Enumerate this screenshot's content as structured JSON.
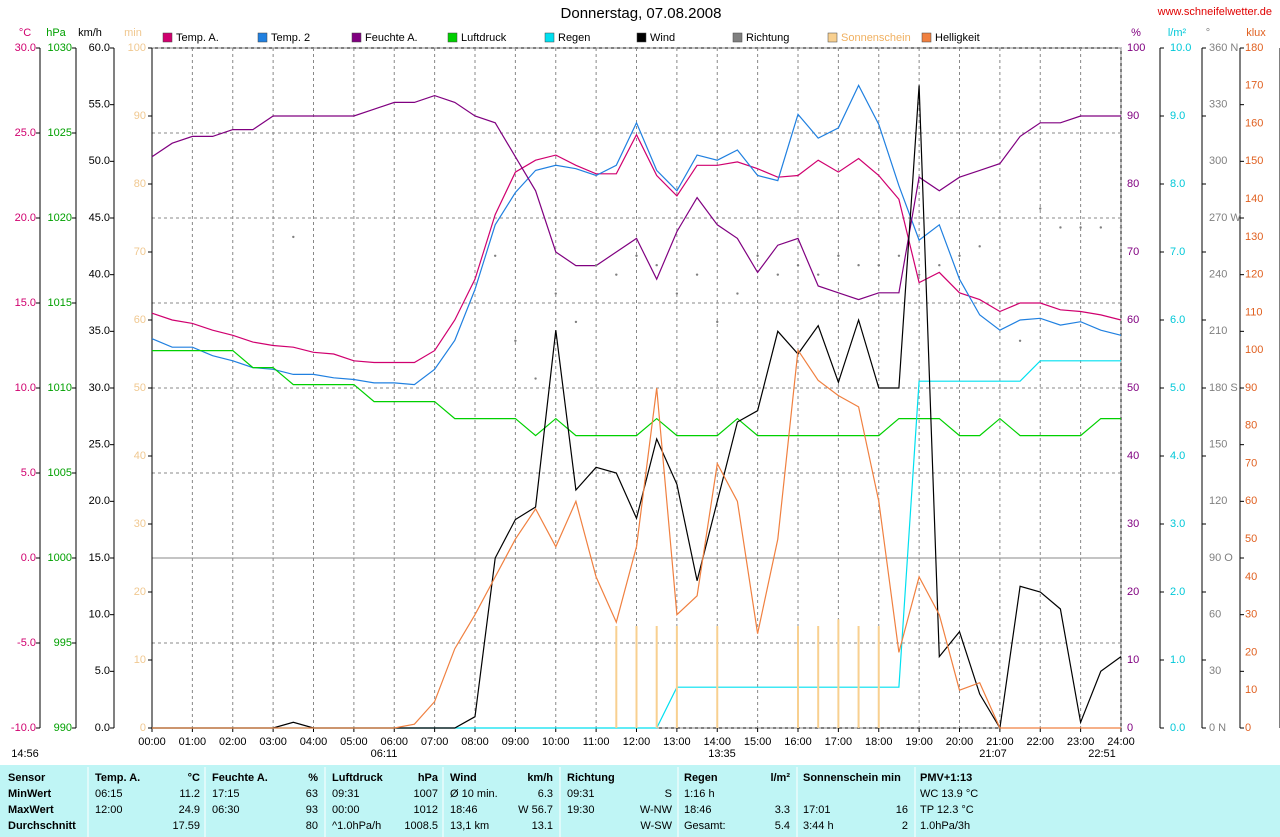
{
  "chart_data": {
    "type": "line",
    "title": "Donnerstag, 07.08.2008",
    "source": "www.schneifelwetter.de",
    "xticks": [
      {
        "value": 0,
        "label": "00:00"
      },
      {
        "value": 1,
        "label": "01:00"
      },
      {
        "value": 2,
        "label": "02:00"
      },
      {
        "value": 3,
        "label": "03:00"
      },
      {
        "value": 4,
        "label": "04:00"
      },
      {
        "value": 5,
        "label": "05:00"
      },
      {
        "value": 6,
        "label": "06:00"
      },
      {
        "value": 7,
        "label": "07:00"
      },
      {
        "value": 8,
        "label": "08:00"
      },
      {
        "value": 9,
        "label": "09:00"
      },
      {
        "value": 10,
        "label": "10:00"
      },
      {
        "value": 11,
        "label": "11:00"
      },
      {
        "value": 12,
        "label": "12:00"
      },
      {
        "value": 13,
        "label": "13:00"
      },
      {
        "value": 14,
        "label": "14:00"
      },
      {
        "value": 15,
        "label": "15:00"
      },
      {
        "value": 16,
        "label": "16:00"
      },
      {
        "value": 17,
        "label": "17:00"
      },
      {
        "value": 18,
        "label": "18:00"
      },
      {
        "value": 19,
        "label": "19:00"
      },
      {
        "value": 20,
        "label": "20:00"
      },
      {
        "value": 21,
        "label": "21:00"
      },
      {
        "value": 22,
        "label": "22:00"
      },
      {
        "value": 23,
        "label": "23:00"
      },
      {
        "value": 24,
        "label": "24:00"
      }
    ],
    "xlim": [
      0,
      24
    ],
    "grid": true,
    "x": [
      0,
      0.5,
      1,
      1.5,
      2,
      2.5,
      3,
      3.5,
      4,
      4.5,
      5,
      5.5,
      6,
      6.5,
      7,
      7.5,
      8,
      8.5,
      9,
      9.5,
      10,
      10.5,
      11,
      11.5,
      12,
      12.5,
      13,
      13.5,
      14,
      14.5,
      15,
      15.5,
      16,
      16.5,
      17,
      17.5,
      18,
      18.5,
      19,
      19.5,
      20,
      20.5,
      21,
      21.5,
      22,
      22.5,
      23,
      23.5,
      24
    ],
    "axes": [
      {
        "label": "°C",
        "color": "#d0006f",
        "side": "left",
        "lim": [
          -10,
          30
        ],
        "ticks": [
          {
            "value": -10,
            "label": "-10.0"
          },
          {
            "value": -5,
            "label": "-5.0"
          },
          {
            "value": 0,
            "label": "0.0"
          },
          {
            "value": 5,
            "label": "5.0"
          },
          {
            "value": 10,
            "label": "10.0"
          },
          {
            "value": 15,
            "label": "15.0"
          },
          {
            "value": 20,
            "label": "20.0"
          },
          {
            "value": 25,
            "label": "25.0"
          },
          {
            "value": 30,
            "label": "30.0"
          }
        ]
      },
      {
        "label": "hPa",
        "color": "#00a000",
        "side": "left",
        "lim": [
          990,
          1030
        ],
        "ticks": [
          990,
          995,
          1000,
          1005,
          1010,
          1015,
          1020,
          1025,
          1030
        ]
      },
      {
        "label": "km/h",
        "color": "#000000",
        "side": "left",
        "lim": [
          0,
          60
        ],
        "ticks": [
          {
            "value": 0,
            "label": "0.0"
          },
          {
            "value": 5,
            "label": "5.0"
          },
          {
            "value": 10,
            "label": "10.0"
          },
          {
            "value": 15,
            "label": "15.0"
          },
          {
            "value": 20,
            "label": "20.0"
          },
          {
            "value": 25,
            "label": "25.0"
          },
          {
            "value": 30,
            "label": "30.0"
          },
          {
            "value": 35,
            "label": "35.0"
          },
          {
            "value": 40,
            "label": "40.0"
          },
          {
            "value": 45,
            "label": "45.0"
          },
          {
            "value": 50,
            "label": "50.0"
          },
          {
            "value": 55,
            "label": "55.0"
          },
          {
            "value": 60,
            "label": "60.0"
          }
        ]
      },
      {
        "label": "min",
        "color": "#f0c890",
        "side": "left",
        "lim": [
          0,
          100
        ],
        "ticks": [
          0,
          10,
          20,
          30,
          40,
          50,
          60,
          70,
          80,
          90,
          100
        ]
      },
      {
        "label": "%",
        "color": "#800080",
        "side": "right",
        "lim": [
          0,
          100
        ],
        "ticks": [
          0,
          10,
          20,
          30,
          40,
          50,
          60,
          70,
          80,
          90,
          100
        ]
      },
      {
        "label": "l/m²",
        "color": "#00c8d8",
        "side": "right",
        "lim": [
          0,
          10
        ],
        "ticks": [
          {
            "value": 0,
            "label": "0.0"
          },
          {
            "value": 1,
            "label": "1.0"
          },
          {
            "value": 2,
            "label": "2.0"
          },
          {
            "value": 3,
            "label": "3.0"
          },
          {
            "value": 4,
            "label": "4.0"
          },
          {
            "value": 5,
            "label": "5.0"
          },
          {
            "value": 6,
            "label": "6.0"
          },
          {
            "value": 7,
            "label": "7.0"
          },
          {
            "value": 8,
            "label": "8.0"
          },
          {
            "value": 9,
            "label": "9.0"
          },
          {
            "value": 10,
            "label": "10.0"
          }
        ]
      },
      {
        "label": "°",
        "color": "#808080",
        "side": "right",
        "lim": [
          0,
          360
        ],
        "ticks": [
          {
            "value": 0,
            "label": "0 N"
          },
          30,
          60,
          {
            "value": 90,
            "label": "90 O"
          },
          120,
          150,
          {
            "value": 180,
            "label": "180 S"
          },
          210,
          240,
          {
            "value": 270,
            "label": "270 W"
          },
          300,
          330,
          {
            "value": 360,
            "label": "360 N"
          }
        ]
      },
      {
        "label": "klux",
        "color": "#e06020",
        "side": "right",
        "lim": [
          0,
          180
        ],
        "ticks": [
          0,
          10,
          20,
          30,
          40,
          50,
          60,
          70,
          80,
          90,
          100,
          110,
          120,
          130,
          140,
          150,
          160,
          170,
          180
        ]
      }
    ],
    "series": [
      {
        "name": "Temp. A.",
        "color": "#d0006f",
        "axis": 0,
        "style": "line",
        "values": [
          14.4,
          14.0,
          13.8,
          13.4,
          13.1,
          12.7,
          12.5,
          12.4,
          12.1,
          12.0,
          11.6,
          11.5,
          11.5,
          11.5,
          12.2,
          14.0,
          16.4,
          20.2,
          22.7,
          23.4,
          23.7,
          23.1,
          22.6,
          22.6,
          24.9,
          22.5,
          21.3,
          23.1,
          23.1,
          23.3,
          22.9,
          22.4,
          22.5,
          23.4,
          22.7,
          23.5,
          22.5,
          21.1,
          16.2,
          16.8,
          15.6,
          15.2,
          14.5,
          15.0,
          15.0,
          14.6,
          14.5,
          14.3,
          14.0
        ]
      },
      {
        "name": "Temp. 2",
        "color": "#2080e0",
        "axis": 0,
        "style": "line",
        "values": [
          12.9,
          12.4,
          12.4,
          11.9,
          11.6,
          11.2,
          11.1,
          10.8,
          10.8,
          10.6,
          10.5,
          10.3,
          10.3,
          10.2,
          11.1,
          12.8,
          15.8,
          19.6,
          21.5,
          22.8,
          23.1,
          22.9,
          22.5,
          23.1,
          25.6,
          22.8,
          21.6,
          23.7,
          23.4,
          24.0,
          22.5,
          22.2,
          26.1,
          24.7,
          25.3,
          27.8,
          25.5,
          21.9,
          18.7,
          19.6,
          16.4,
          14.3,
          13.4,
          14.0,
          14.1,
          13.7,
          13.9,
          13.4,
          13.1
        ]
      },
      {
        "name": "Feuchte A.",
        "color": "#800080",
        "axis": 4,
        "style": "line",
        "values": [
          84,
          86,
          87,
          87,
          88,
          88,
          90,
          90,
          90,
          90,
          90,
          91,
          92,
          92,
          93,
          92,
          90,
          89,
          84,
          79,
          70,
          68,
          68,
          70,
          72,
          66,
          73,
          78,
          74,
          72,
          67,
          71,
          72,
          65,
          64,
          63,
          64,
          64,
          81,
          79,
          81,
          82,
          83,
          87,
          89,
          89,
          90,
          90,
          90
        ]
      },
      {
        "name": "Luftdruck",
        "color": "#00d000",
        "axis": 1,
        "style": "line",
        "values": [
          1012.2,
          1012.2,
          1012.2,
          1012.2,
          1012.2,
          1011.2,
          1011.2,
          1010.2,
          1010.2,
          1010.2,
          1010.2,
          1009.2,
          1009.2,
          1009.2,
          1009.2,
          1008.2,
          1008.2,
          1008.2,
          1008.2,
          1007.2,
          1008.2,
          1007.2,
          1007.2,
          1007.2,
          1007.2,
          1008.2,
          1007.2,
          1007.2,
          1007.2,
          1008.2,
          1007.2,
          1007.2,
          1007.2,
          1007.2,
          1007.2,
          1007.2,
          1007.2,
          1008.2,
          1008.2,
          1008.2,
          1007.2,
          1007.2,
          1008.2,
          1007.2,
          1007.2,
          1007.2,
          1007.2,
          1008.2,
          1008.2
        ]
      },
      {
        "name": "Regen",
        "color": "#00e0f0",
        "axis": 5,
        "style": "line",
        "values": [
          0,
          0,
          0,
          0,
          0,
          0,
          0,
          0,
          0,
          0,
          0,
          0,
          0,
          0,
          0,
          0,
          0,
          0,
          0,
          0,
          0,
          0,
          0,
          0,
          0,
          0,
          0.6,
          0.6,
          0.6,
          0.6,
          0.6,
          0.6,
          0.6,
          0.6,
          0.6,
          0.6,
          0.6,
          0.6,
          5.1,
          5.1,
          5.1,
          5.1,
          5.1,
          5.1,
          5.4,
          5.4,
          5.4,
          5.4,
          5.4
        ]
      },
      {
        "name": "Wind",
        "color": "#000000",
        "axis": 2,
        "style": "line",
        "values": [
          0,
          0,
          0,
          0,
          0,
          0,
          0,
          0.5,
          0,
          0,
          0,
          0,
          0,
          0,
          0,
          0,
          1,
          15,
          18.4,
          19.5,
          35.1,
          21,
          23,
          22.5,
          18.5,
          25.5,
          21.5,
          13,
          20,
          27,
          28,
          35,
          33,
          35.5,
          30.5,
          36,
          30,
          30,
          56.7,
          6.3,
          8.5,
          3,
          0,
          12.5,
          12,
          10.5,
          0.5,
          5,
          6.3
        ]
      },
      {
        "name": "Richtung",
        "color": "#808080",
        "axis": 6,
        "style": "dots",
        "values": [
          null,
          null,
          null,
          null,
          null,
          null,
          null,
          260,
          null,
          null,
          null,
          null,
          null,
          null,
          null,
          null,
          null,
          250,
          205,
          185,
          230,
          215,
          245,
          240,
          250,
          245,
          230,
          240,
          215,
          230,
          250,
          240,
          245,
          240,
          250,
          245,
          245,
          250,
          240,
          245,
          250,
          255,
          null,
          205,
          275,
          265,
          265,
          265,
          265
        ]
      },
      {
        "name": "Sonnenschein",
        "color": "#f8d090",
        "axis": 3,
        "style": "bars",
        "values": [
          0,
          0,
          0,
          0,
          0,
          0,
          0,
          0,
          0,
          0,
          0,
          0,
          0,
          0,
          0,
          0,
          0,
          0,
          0,
          0,
          0,
          0,
          0,
          15,
          15,
          15,
          15,
          0,
          15,
          0,
          0,
          0,
          15,
          15,
          16,
          15,
          15,
          0,
          0,
          0,
          0,
          0,
          0,
          0,
          0,
          0,
          0,
          0,
          0
        ]
      },
      {
        "name": "Helligkeit",
        "color": "#f08040",
        "axis": 7,
        "style": "line",
        "values": [
          0,
          0,
          0,
          0,
          0,
          0,
          0,
          0,
          0,
          0,
          0,
          0,
          0,
          1,
          7,
          21,
          30,
          40,
          50,
          58,
          48,
          60,
          40,
          28,
          48,
          90,
          30,
          35,
          70,
          60,
          25,
          50,
          100,
          92,
          88,
          85,
          60,
          20,
          40,
          30,
          10,
          12,
          0,
          0,
          0,
          0,
          0,
          0,
          0
        ]
      }
    ],
    "annotations": [
      "14:56",
      "06:11",
      "13:35",
      "21:07",
      "22:51"
    ]
  },
  "table": {
    "header": [
      {
        "l": "Sensor"
      },
      {
        "l": "Temp. A.",
        "r": "°C"
      },
      {
        "l": "Feuchte A.",
        "r": "%"
      },
      {
        "l": "Luftdruck",
        "r": "hPa"
      },
      {
        "l": "Wind",
        "r": "km/h"
      },
      {
        "l": "Richtung"
      },
      {
        "l": "Regen",
        "r": "l/m²"
      },
      {
        "l": "Sonnenschein min"
      },
      {
        "l": "PMV+1:13"
      }
    ],
    "rows": [
      [
        {
          "l": "MinWert"
        },
        {
          "l": "06:15",
          "r": "11.2"
        },
        {
          "l": "17:15",
          "r": "63"
        },
        {
          "l": "09:31",
          "r": "1007"
        },
        {
          "l": "Ø 10 min.",
          "r": "6.3"
        },
        {
          "l": "09:31",
          "r": "S"
        },
        {
          "l": "1:16 h"
        },
        {},
        {
          "l": "WC 13.9 °C"
        }
      ],
      [
        {
          "l": "MaxWert"
        },
        {
          "l": "12:00",
          "r": "24.9"
        },
        {
          "l": "06:30",
          "r": "93"
        },
        {
          "l": "00:00",
          "r": "1012"
        },
        {
          "l": "18:46",
          "r": "W 56.7"
        },
        {
          "l": "19:30",
          "r": "W-NW"
        },
        {
          "l": "18:46",
          "r": "3.3"
        },
        {
          "l": "17:01",
          "r": "16"
        },
        {
          "l": "TP 12.3 °C"
        }
      ],
      [
        {
          "l": "Durchschnitt"
        },
        {
          "r": "17.59"
        },
        {
          "r": "80"
        },
        {
          "l": "^1.0hPa/h",
          "r": "1008.5"
        },
        {
          "l": "13,1 km",
          "r": "13.1"
        },
        {
          "r": "W-SW"
        },
        {
          "l": "Gesamt:",
          "r": "5.4"
        },
        {
          "l": "3:44 h",
          "r": "2"
        },
        {
          "l": "1.0hPa/3h"
        }
      ]
    ]
  }
}
